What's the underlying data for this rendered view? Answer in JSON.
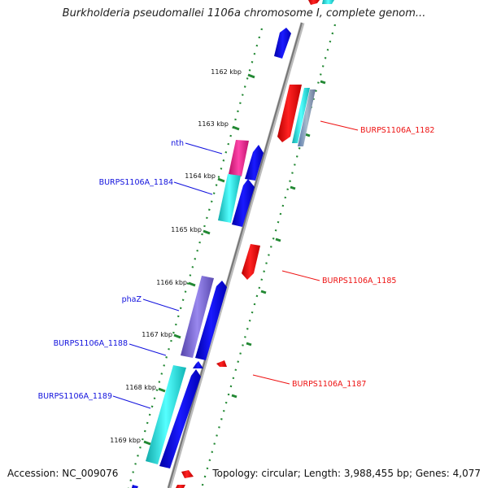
{
  "title": "Burkholderia pseudomallei 1106a chromosome I, complete genom...",
  "footer": {
    "accession": "Accession: NC_009076",
    "summary": "Topology: circular; Length: 3,988,455 bp; Genes: 4,077"
  },
  "colors": {
    "forward_strand": "#ee1111",
    "reverse_strand": "#1111dd",
    "reverse_strand_alt": "#22dddd",
    "violet_gene": "#7766cc",
    "magenta_gene": "#ee2288",
    "tick": "#228833",
    "backbone": "#888888"
  },
  "ticks": [
    "1162 kbp",
    "1163 kbp",
    "1164 kbp",
    "1165 kbp",
    "1166 kbp",
    "1167 kbp",
    "1168 kbp",
    "1169 kbp"
  ],
  "right_labels": [
    "BURPS1106A_1182",
    "BURPS1106A_1185",
    "BURPS1106A_1187"
  ],
  "left_labels": [
    "nth",
    "BURPS1106A_1184",
    "phaZ",
    "BURPS1106A_1188",
    "BURPS1106A_1189"
  ]
}
